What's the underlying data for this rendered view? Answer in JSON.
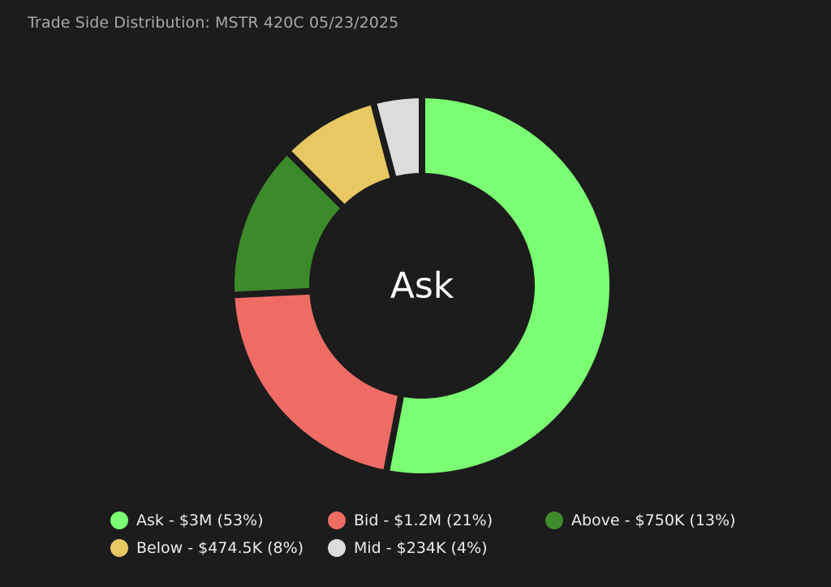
{
  "title": "Trade Side Distribution: MSTR 420C 05/23/2025",
  "center_label": "Ask",
  "chart_data": {
    "type": "pie",
    "style": "donut",
    "title": "Trade Side Distribution: MSTR 420C 05/23/2025",
    "center_label": "Ask",
    "legend_position": "bottom",
    "series": [
      {
        "name": "Ask",
        "value": 3000000,
        "percent": 53,
        "label": "Ask - $3M (53%)",
        "color": "#7bff73"
      },
      {
        "name": "Bid",
        "value": 1200000,
        "percent": 21,
        "label": "Bid - $1.2M (21%)",
        "color": "#ef6c65"
      },
      {
        "name": "Above",
        "value": 750000,
        "percent": 13,
        "label": "Above - $750K (13%)",
        "color": "#3d8a2a"
      },
      {
        "name": "Below",
        "value": 474500,
        "percent": 8,
        "label": "Below - $474.5K (8%)",
        "color": "#e8c863"
      },
      {
        "name": "Mid",
        "value": 234000,
        "percent": 4,
        "label": "Mid - $234K (4%)",
        "color": "#dcdcdc"
      }
    ]
  }
}
